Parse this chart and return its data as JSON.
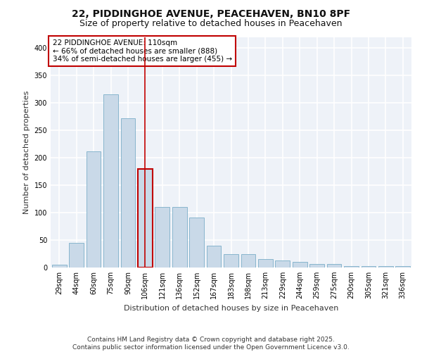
{
  "title_line1": "22, PIDDINGHOE AVENUE, PEACEHAVEN, BN10 8PF",
  "title_line2": "Size of property relative to detached houses in Peacehaven",
  "xlabel": "Distribution of detached houses by size in Peacehaven",
  "ylabel": "Number of detached properties",
  "categories": [
    "29sqm",
    "44sqm",
    "60sqm",
    "75sqm",
    "90sqm",
    "106sqm",
    "121sqm",
    "136sqm",
    "152sqm",
    "167sqm",
    "183sqm",
    "198sqm",
    "213sqm",
    "229sqm",
    "244sqm",
    "259sqm",
    "275sqm",
    "290sqm",
    "305sqm",
    "321sqm",
    "336sqm"
  ],
  "values": [
    5,
    45,
    212,
    315,
    272,
    180,
    110,
    110,
    91,
    40,
    25,
    25,
    15,
    13,
    10,
    6,
    6,
    3,
    2,
    3,
    2
  ],
  "bar_color": "#c9d9e8",
  "bar_edge_color": "#7baec8",
  "highlight_bar_index": 5,
  "vline_color": "#c00000",
  "annotation_text": "22 PIDDINGHOE AVENUE: 110sqm\n← 66% of detached houses are smaller (888)\n34% of semi-detached houses are larger (455) →",
  "annotation_box_color": "#ffffff",
  "annotation_box_edge_color": "#c00000",
  "ylim": [
    0,
    420
  ],
  "yticks": [
    0,
    50,
    100,
    150,
    200,
    250,
    300,
    350,
    400
  ],
  "footer_text": "Contains HM Land Registry data © Crown copyright and database right 2025.\nContains public sector information licensed under the Open Government Licence v3.0.",
  "background_color": "#eef2f8",
  "grid_color": "#ffffff",
  "title_fontsize": 10,
  "subtitle_fontsize": 9,
  "axis_label_fontsize": 8,
  "tick_fontsize": 7,
  "annotation_fontsize": 7.5,
  "footer_fontsize": 6.5
}
